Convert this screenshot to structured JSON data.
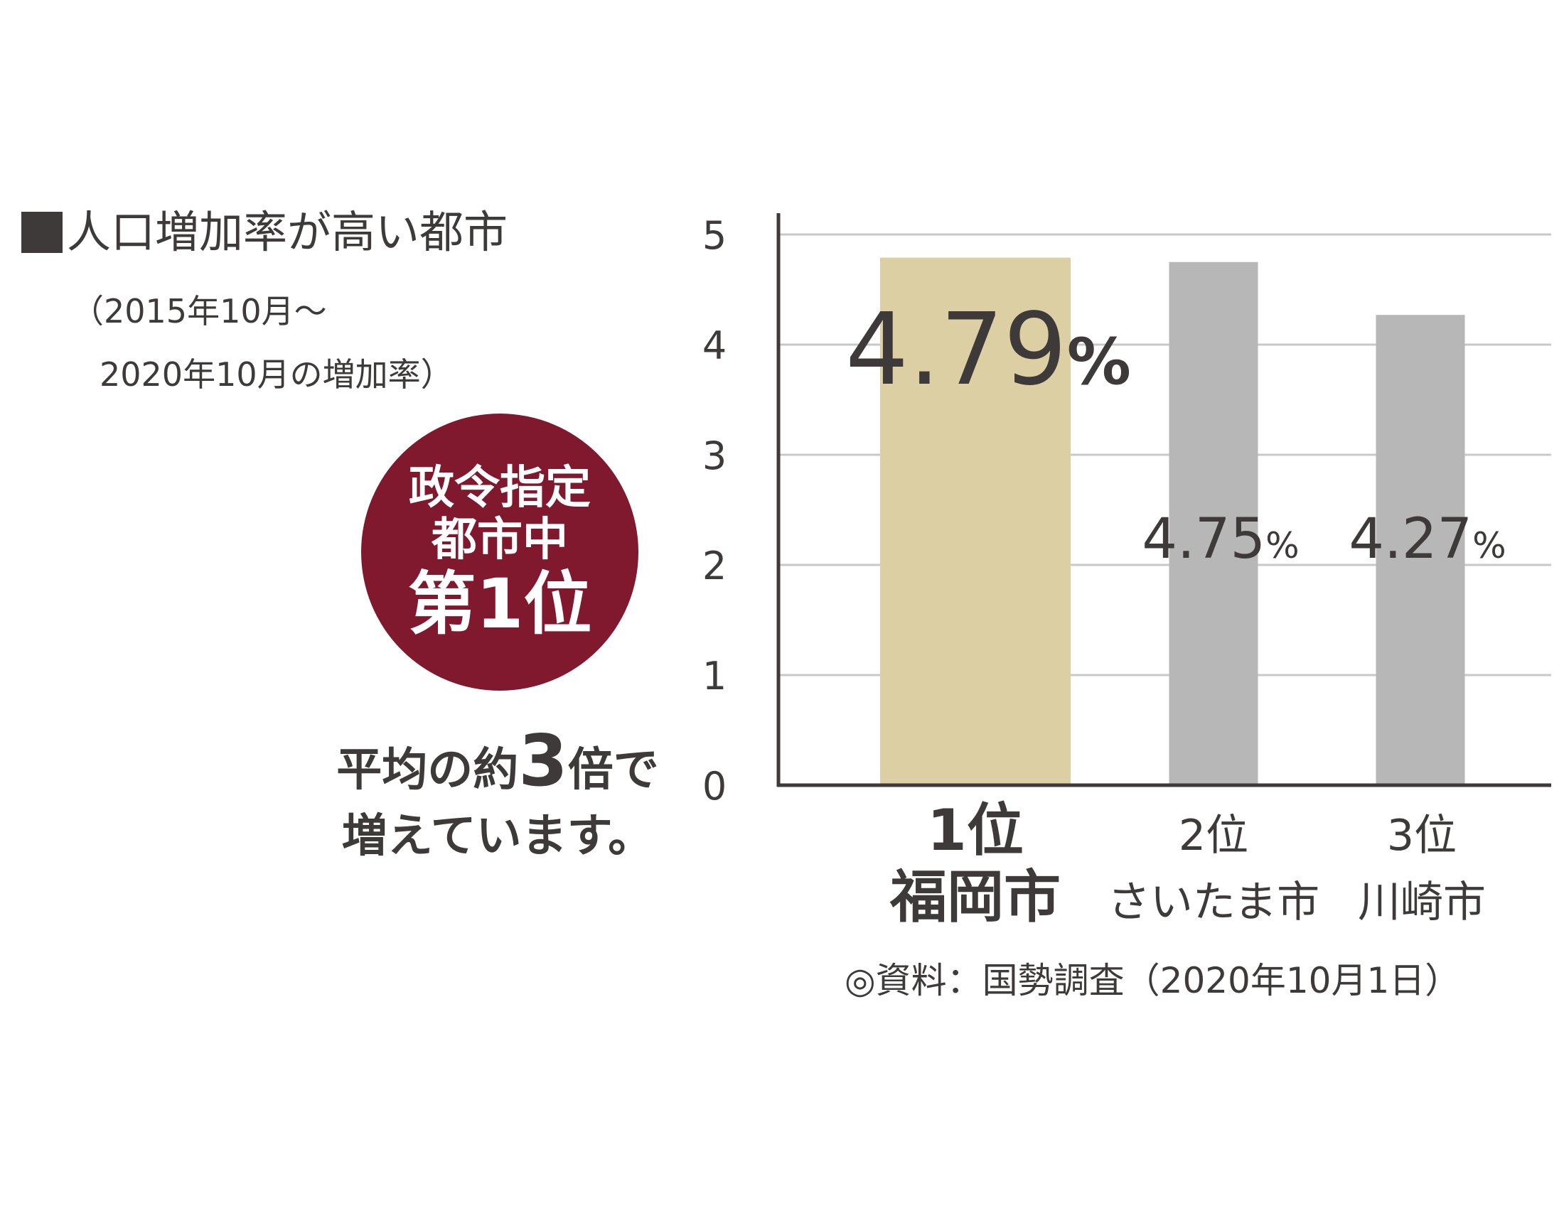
{
  "header": {
    "title": "人口増加率が高い都市",
    "subtitle_line1": "（2015年10月～",
    "subtitle_line2": "2020年10月の増加率）"
  },
  "badge": {
    "line1": "政令指定",
    "line2": "都市中",
    "line3": "第1位"
  },
  "note": {
    "pre": "平均の約",
    "number": "3",
    "post": "倍で",
    "line2": "増えています。"
  },
  "source": "◎資料：国勢調査（2020年10月1日）",
  "colors": {
    "badge": "#80192e",
    "highlight_bar": "#dccfa3",
    "other_bar": "#b6b7b6",
    "text": "#3e3a39",
    "grid": "#c8c8c8"
  },
  "chart_data": {
    "type": "bar",
    "categories": [
      {
        "rank": "1位",
        "city": "福岡市"
      },
      {
        "rank": "2位",
        "city": "さいたま市"
      },
      {
        "rank": "3位",
        "city": "川崎市"
      }
    ],
    "values": [
      4.79,
      4.75,
      4.27
    ],
    "value_labels": [
      "4.79",
      "4.75",
      "4.27"
    ],
    "unit": "%",
    "highlight_index": 0,
    "ylim": [
      0,
      5
    ],
    "yticks": [
      "0",
      "1",
      "2",
      "3",
      "4",
      "5"
    ],
    "grid": true
  }
}
